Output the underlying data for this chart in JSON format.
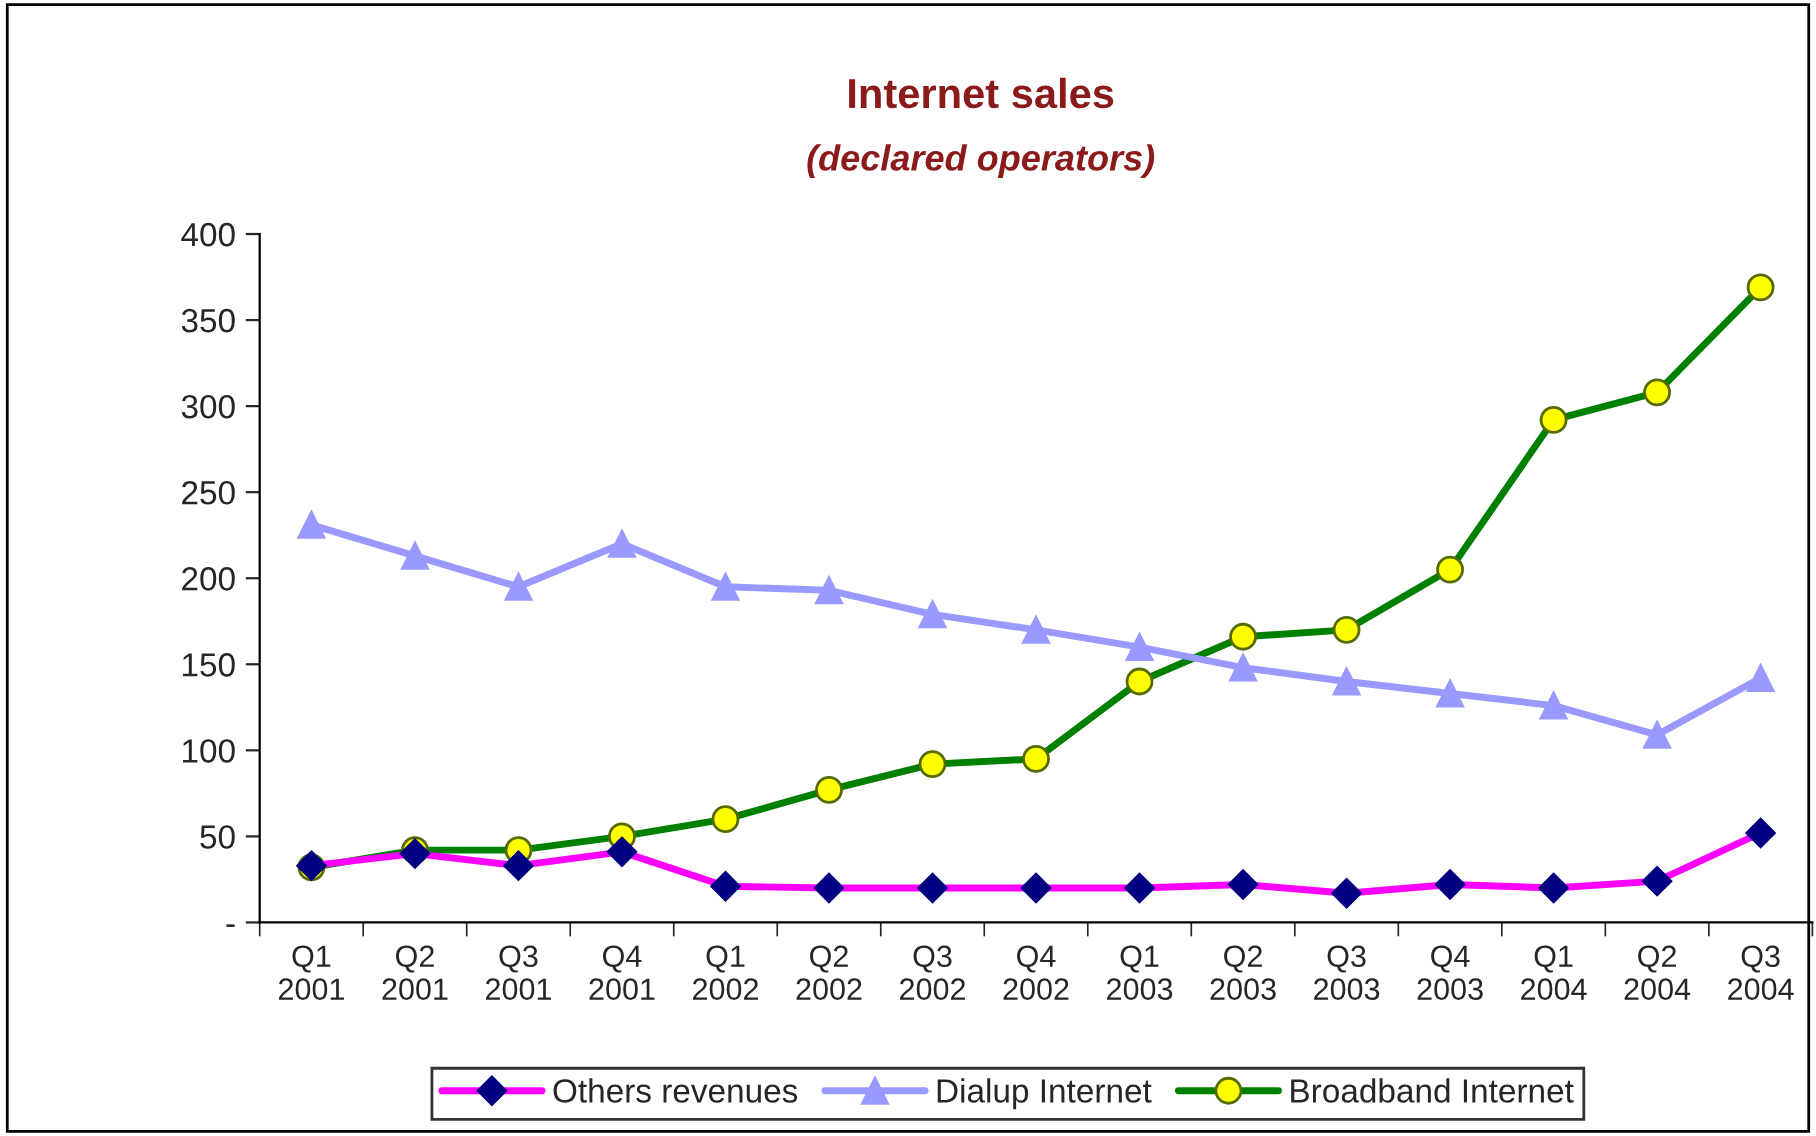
{
  "chart_data": {
    "type": "line",
    "title": "Internet sales",
    "subtitle": "(declared operators)",
    "categories": [
      "Q1\n2001",
      "Q2\n2001",
      "Q3\n2001",
      "Q4\n2001",
      "Q1\n2002",
      "Q2\n2002",
      "Q3\n2002",
      "Q4\n2002",
      "Q1\n2003",
      "Q2\n2003",
      "Q3\n2003",
      "Q4\n2003",
      "Q1\n2004",
      "Q2\n2004",
      "Q3\n2004"
    ],
    "series": [
      {
        "name": "Others revenues",
        "color": "#ff00ff",
        "marker": "diamond",
        "values": [
          33,
          40,
          33,
          41,
          21,
          20,
          20,
          20,
          20,
          22,
          17,
          22,
          20,
          24,
          52
        ]
      },
      {
        "name": "Dialup Internet",
        "color": "#9999ff",
        "marker": "triangle",
        "values": [
          231,
          213,
          195,
          220,
          195,
          193,
          179,
          170,
          160,
          148,
          140,
          133,
          126,
          109,
          142
        ]
      },
      {
        "name": "Broadband Internet",
        "color": "#008000",
        "marker": "circle",
        "values": [
          32,
          42,
          42,
          50,
          60,
          77,
          92,
          95,
          140,
          166,
          170,
          205,
          292,
          308,
          369
        ]
      }
    ],
    "ylim": [
      0,
      400
    ],
    "yticks": [
      {
        "value": 0,
        "label": "-"
      },
      50,
      100,
      150,
      200,
      250,
      300,
      350,
      400
    ],
    "grid": false,
    "legend": "bottom",
    "line_style": "solid"
  }
}
